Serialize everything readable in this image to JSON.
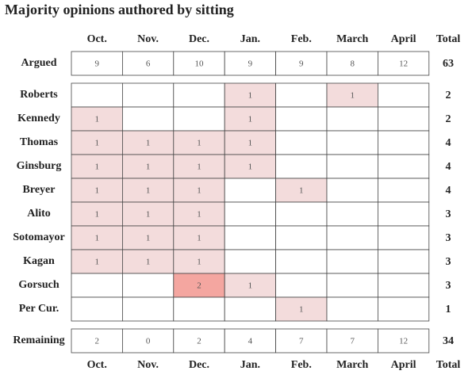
{
  "title": "Majority opinions authored by sitting",
  "columns": [
    "Oct.",
    "Nov.",
    "Dec.",
    "Jan.",
    "Feb.",
    "March",
    "April",
    "Total"
  ],
  "argued": {
    "label": "Argued",
    "values": [
      9,
      6,
      10,
      9,
      9,
      8,
      12
    ],
    "total": 63
  },
  "rows": [
    {
      "label": "Roberts",
      "cells": [
        null,
        null,
        null,
        1,
        null,
        1,
        null
      ],
      "total": 2
    },
    {
      "label": "Kennedy",
      "cells": [
        1,
        null,
        null,
        1,
        null,
        null,
        null
      ],
      "total": 2
    },
    {
      "label": "Thomas",
      "cells": [
        1,
        1,
        1,
        1,
        null,
        null,
        null
      ],
      "total": 4
    },
    {
      "label": "Ginsburg",
      "cells": [
        1,
        1,
        1,
        1,
        null,
        null,
        null
      ],
      "total": 4
    },
    {
      "label": "Breyer",
      "cells": [
        1,
        1,
        1,
        null,
        1,
        null,
        null
      ],
      "total": 4
    },
    {
      "label": "Alito",
      "cells": [
        1,
        1,
        1,
        null,
        null,
        null,
        null
      ],
      "total": 3
    },
    {
      "label": "Sotomayor",
      "cells": [
        1,
        1,
        1,
        null,
        null,
        null,
        null
      ],
      "total": 3
    },
    {
      "label": "Kagan",
      "cells": [
        1,
        1,
        1,
        null,
        null,
        null,
        null
      ],
      "total": 3
    },
    {
      "label": "Gorsuch",
      "cells": [
        null,
        null,
        2,
        1,
        null,
        null,
        null
      ],
      "total": 3
    },
    {
      "label": "Per Cur.",
      "cells": [
        null,
        null,
        null,
        null,
        1,
        null,
        null
      ],
      "total": 1
    }
  ],
  "remaining": {
    "label": "Remaining",
    "values": [
      2,
      0,
      2,
      4,
      7,
      7,
      12
    ],
    "total": 34
  }
}
